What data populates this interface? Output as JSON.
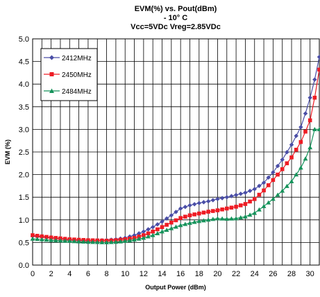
{
  "chart_data": {
    "type": "line",
    "title": "EVM(%) vs. Pout(dBm)",
    "subtitle_lines": [
      "- 10° C",
      "Vcc=5VDc Vreg=2.85VDc"
    ],
    "xlabel": "Output Power (dBm)",
    "ylabel": "EVM (%)",
    "xlim": [
      0,
      31
    ],
    "ylim": [
      0,
      5
    ],
    "xticks": [
      "0",
      "2",
      "4",
      "6",
      "8",
      "10",
      "12",
      "14",
      "16",
      "18",
      "20",
      "22",
      "24",
      "26",
      "28",
      "30"
    ],
    "yticks": [
      "0.0",
      "0.5",
      "1.0",
      "1.5",
      "2.0",
      "2.5",
      "3.0",
      "3.5",
      "4.0",
      "4.5",
      "5.0"
    ],
    "grid": true,
    "legend_position": "top-left",
    "series": [
      {
        "name": "2412MHz",
        "color": "#4a4ea6",
        "marker": "diamond",
        "points": [
          [
            0,
            0.64
          ],
          [
            2,
            0.6
          ],
          [
            4,
            0.56
          ],
          [
            6,
            0.54
          ],
          [
            8,
            0.55
          ],
          [
            9,
            0.57
          ],
          [
            10,
            0.6
          ],
          [
            11,
            0.66
          ],
          [
            12,
            0.74
          ],
          [
            13,
            0.84
          ],
          [
            14,
            0.96
          ],
          [
            15,
            1.1
          ],
          [
            16,
            1.25
          ],
          [
            17,
            1.32
          ],
          [
            18,
            1.37
          ],
          [
            19,
            1.41
          ],
          [
            20,
            1.46
          ],
          [
            21,
            1.5
          ],
          [
            22,
            1.55
          ],
          [
            23,
            1.6
          ],
          [
            24,
            1.68
          ],
          [
            25,
            1.82
          ],
          [
            26,
            2.05
          ],
          [
            27,
            2.33
          ],
          [
            28,
            2.66
          ],
          [
            29,
            3.05
          ],
          [
            29.5,
            3.35
          ],
          [
            30,
            3.7
          ],
          [
            30.5,
            4.1
          ],
          [
            31,
            4.6
          ]
        ]
      },
      {
        "name": "2450MHz",
        "color": "#ee1c24",
        "marker": "square",
        "points": [
          [
            0,
            0.66
          ],
          [
            2,
            0.61
          ],
          [
            4,
            0.57
          ],
          [
            6,
            0.55
          ],
          [
            8,
            0.54
          ],
          [
            9,
            0.55
          ],
          [
            10,
            0.57
          ],
          [
            11,
            0.6
          ],
          [
            12,
            0.66
          ],
          [
            13,
            0.74
          ],
          [
            14,
            0.84
          ],
          [
            15,
            0.94
          ],
          [
            16,
            1.04
          ],
          [
            17,
            1.1
          ],
          [
            18,
            1.14
          ],
          [
            19,
            1.18
          ],
          [
            20,
            1.21
          ],
          [
            21,
            1.25
          ],
          [
            22,
            1.29
          ],
          [
            23,
            1.35
          ],
          [
            24,
            1.46
          ],
          [
            25,
            1.65
          ],
          [
            26,
            1.88
          ],
          [
            27,
            2.12
          ],
          [
            28,
            2.38
          ],
          [
            29,
            2.72
          ],
          [
            29.5,
            2.95
          ],
          [
            30,
            3.2
          ],
          [
            30.5,
            3.7
          ],
          [
            31,
            4.32
          ]
        ]
      },
      {
        "name": "2484MHz",
        "color": "#15925a",
        "marker": "triangle",
        "points": [
          [
            0,
            0.58
          ],
          [
            2,
            0.55
          ],
          [
            4,
            0.53
          ],
          [
            6,
            0.51
          ],
          [
            8,
            0.5
          ],
          [
            9,
            0.51
          ],
          [
            10,
            0.53
          ],
          [
            11,
            0.56
          ],
          [
            12,
            0.6
          ],
          [
            13,
            0.66
          ],
          [
            14,
            0.74
          ],
          [
            15,
            0.81
          ],
          [
            16,
            0.88
          ],
          [
            17,
            0.93
          ],
          [
            18,
            0.97
          ],
          [
            19,
            1.0
          ],
          [
            20,
            1.03
          ],
          [
            21,
            1.02
          ],
          [
            22,
            1.03
          ],
          [
            23,
            1.07
          ],
          [
            24,
            1.15
          ],
          [
            25,
            1.3
          ],
          [
            26,
            1.46
          ],
          [
            27,
            1.64
          ],
          [
            28,
            1.85
          ],
          [
            29,
            2.15
          ],
          [
            29.5,
            2.35
          ],
          [
            30,
            2.6
          ],
          [
            30.5,
            3.0
          ],
          [
            31,
            3.0
          ]
        ]
      }
    ]
  }
}
